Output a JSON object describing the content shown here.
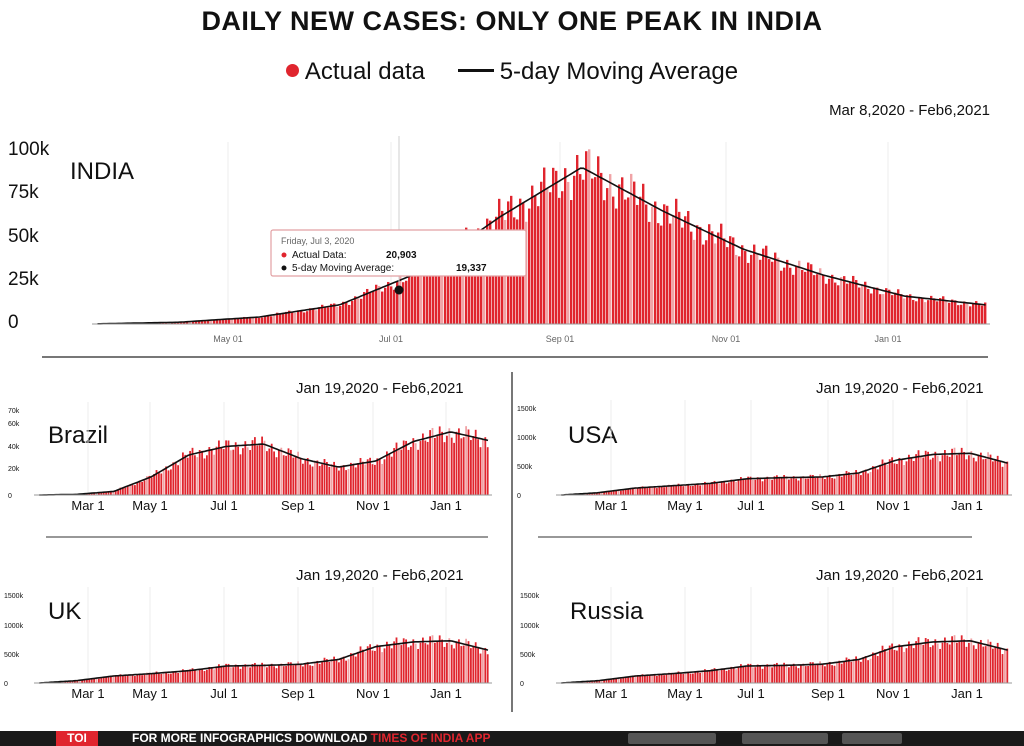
{
  "title": "DAILY NEW CASES: ONLY ONE PEAK IN INDIA",
  "legend": {
    "actual": "Actual data",
    "average": "5-day Moving Average"
  },
  "colors": {
    "bar": "#e0252e",
    "bar_light": "#f0a3a6",
    "line": "#111111"
  },
  "chart_data": [
    {
      "type": "bar",
      "country": "INDIA",
      "range": "Mar 8,2020 - Feb6,2021",
      "x_ticks": [
        "May 01",
        "Jul 01",
        "Sep 01",
        "Nov 01",
        "Jan 01"
      ],
      "y_ticks": [
        "0",
        "25k",
        "50k",
        "75k",
        "100k"
      ],
      "ylim": [
        0,
        100000
      ],
      "monthly_avg": [
        {
          "month": "Mar",
          "value": 100
        },
        {
          "month": "Apr",
          "value": 1000
        },
        {
          "month": "May",
          "value": 4000
        },
        {
          "month": "Jun",
          "value": 11000
        },
        {
          "month": "Jul",
          "value": 30000
        },
        {
          "month": "Aug",
          "value": 62000
        },
        {
          "month": "Sep",
          "value": 90000
        },
        {
          "month": "Oct",
          "value": 65000
        },
        {
          "month": "Nov",
          "value": 43000
        },
        {
          "month": "Dec",
          "value": 28000
        },
        {
          "month": "Jan",
          "value": 16000
        },
        {
          "month": "Feb",
          "value": 11000
        }
      ],
      "tooltip": {
        "date": "Friday, Jul 3, 2020",
        "actual_label": "Actual Data:",
        "actual_value": "20,903",
        "avg_label": "5-day Moving Average:",
        "avg_value": "19,337"
      }
    },
    {
      "type": "bar",
      "country": "Brazil",
      "range": "Jan 19,2020 - Feb6,2021",
      "x_ticks": [
        "Mar 1",
        "May 1",
        "Jul 1",
        "Sep 1",
        "Nov 1",
        "Jan 1"
      ],
      "y_ticks": [
        "0",
        "20k",
        "40k",
        "60k",
        "70k"
      ],
      "monthly_avg": [
        {
          "month": "Feb",
          "value": 0
        },
        {
          "month": "Mar",
          "value": 500
        },
        {
          "month": "Apr",
          "value": 3000
        },
        {
          "month": "May",
          "value": 15000
        },
        {
          "month": "Jun",
          "value": 33000
        },
        {
          "month": "Jul",
          "value": 40000
        },
        {
          "month": "Aug",
          "value": 42000
        },
        {
          "month": "Sep",
          "value": 30000
        },
        {
          "month": "Oct",
          "value": 23000
        },
        {
          "month": "Nov",
          "value": 28000
        },
        {
          "month": "Dec",
          "value": 44000
        },
        {
          "month": "Jan",
          "value": 52000
        },
        {
          "month": "Feb",
          "value": 45000
        }
      ]
    },
    {
      "type": "bar",
      "country": "USA",
      "range": "Jan 19,2020 - Feb6,2021",
      "x_ticks": [
        "Mar 1",
        "May 1",
        "Jul 1",
        "Sep 1",
        "Nov 1",
        "Jan 1"
      ],
      "y_ticks": [
        "0",
        "500k",
        "1000k",
        "1500k"
      ],
      "monthly_avg": [
        {
          "month": "Feb",
          "value": 0
        },
        {
          "month": "Mar",
          "value": 40000
        },
        {
          "month": "Apr",
          "value": 120000
        },
        {
          "month": "May",
          "value": 160000
        },
        {
          "month": "Jun",
          "value": 200000
        },
        {
          "month": "Jul",
          "value": 280000
        },
        {
          "month": "Aug",
          "value": 300000
        },
        {
          "month": "Sep",
          "value": 310000
        },
        {
          "month": "Oct",
          "value": 380000
        },
        {
          "month": "Nov",
          "value": 600000
        },
        {
          "month": "Dec",
          "value": 700000
        },
        {
          "month": "Jan",
          "value": 720000
        },
        {
          "month": "Feb",
          "value": 550000
        }
      ]
    },
    {
      "type": "bar",
      "country": "UK",
      "range": "Jan 19,2020 - Feb6,2021",
      "x_ticks": [
        "Mar 1",
        "May 1",
        "Jul 1",
        "Sep 1",
        "Nov 1",
        "Jan 1"
      ],
      "y_ticks": [
        "0",
        "500k",
        "1000k",
        "1500k"
      ],
      "monthly_avg": [
        {
          "month": "Feb",
          "value": 0
        },
        {
          "month": "Mar",
          "value": 40000
        },
        {
          "month": "Apr",
          "value": 120000
        },
        {
          "month": "May",
          "value": 160000
        },
        {
          "month": "Jun",
          "value": 210000
        },
        {
          "month": "Jul",
          "value": 290000
        },
        {
          "month": "Aug",
          "value": 300000
        },
        {
          "month": "Sep",
          "value": 320000
        },
        {
          "month": "Oct",
          "value": 400000
        },
        {
          "month": "Nov",
          "value": 620000
        },
        {
          "month": "Dec",
          "value": 700000
        },
        {
          "month": "Jan",
          "value": 720000
        },
        {
          "month": "Feb",
          "value": 560000
        }
      ]
    },
    {
      "type": "bar",
      "country": "Russia",
      "range": "Jan 19,2020 - Feb6,2021",
      "x_ticks": [
        "Mar 1",
        "May 1",
        "Jul 1",
        "Sep 1",
        "Nov 1",
        "Jan 1"
      ],
      "y_ticks": [
        "0",
        "500k",
        "1000k",
        "1500k"
      ],
      "monthly_avg": [
        {
          "month": "Feb",
          "value": 0
        },
        {
          "month": "Mar",
          "value": 40000
        },
        {
          "month": "Apr",
          "value": 120000
        },
        {
          "month": "May",
          "value": 160000
        },
        {
          "month": "Jun",
          "value": 210000
        },
        {
          "month": "Jul",
          "value": 290000
        },
        {
          "month": "Aug",
          "value": 300000
        },
        {
          "month": "Sep",
          "value": 320000
        },
        {
          "month": "Oct",
          "value": 400000
        },
        {
          "month": "Nov",
          "value": 620000
        },
        {
          "month": "Dec",
          "value": 700000
        },
        {
          "month": "Jan",
          "value": 720000
        },
        {
          "month": "Feb",
          "value": 560000
        }
      ]
    }
  ],
  "footer": {
    "brand": "TOI",
    "text": "FOR MORE  INFOGRAPHICS DOWNLOAD",
    "app": "TIMES OF INDIA APP"
  }
}
